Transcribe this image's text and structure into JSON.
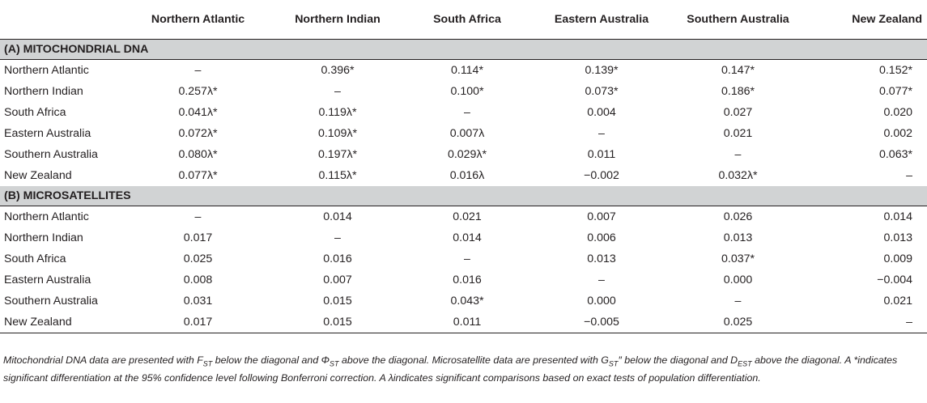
{
  "columns": [
    "",
    "Northern Atlantic",
    "Northern Indian",
    "South Africa",
    "Eastern Australia",
    "Southern Australia",
    "New Zealand"
  ],
  "sections": [
    {
      "title": "(A) MITOCHONDRIAL DNA",
      "rows": [
        {
          "label": "Northern Atlantic",
          "cells": [
            "–",
            "0.396*",
            "0.114*",
            "0.139*",
            "0.147*",
            "0.152*"
          ]
        },
        {
          "label": "Northern Indian",
          "cells": [
            "0.257λ*",
            "–",
            "0.100*",
            "0.073*",
            "0.186*",
            "0.077*"
          ]
        },
        {
          "label": "South Africa",
          "cells": [
            "0.041λ*",
            "0.119λ*",
            "–",
            "0.004",
            "0.027",
            "0.020"
          ]
        },
        {
          "label": "Eastern Australia",
          "cells": [
            "0.072λ*",
            "0.109λ*",
            "0.007λ",
            "–",
            "0.021",
            "0.002"
          ]
        },
        {
          "label": "Southern Australia",
          "cells": [
            "0.080λ*",
            "0.197λ*",
            "0.029λ*",
            "0.011",
            "–",
            "0.063*"
          ]
        },
        {
          "label": "New Zealand",
          "cells": [
            "0.077λ*",
            "0.115λ*",
            "0.016λ",
            "−0.002",
            "0.032λ*",
            "–"
          ]
        }
      ]
    },
    {
      "title": "(B) MICROSATELLITES",
      "rows": [
        {
          "label": "Northern Atlantic",
          "cells": [
            "–",
            "0.014",
            "0.021",
            "0.007",
            "0.026",
            "0.014"
          ]
        },
        {
          "label": "Northern Indian",
          "cells": [
            "0.017",
            "–",
            "0.014",
            "0.006",
            "0.013",
            "0.013"
          ]
        },
        {
          "label": "South Africa",
          "cells": [
            "0.025",
            "0.016",
            "–",
            "0.013",
            "0.037*",
            "0.009"
          ]
        },
        {
          "label": "Eastern Australia",
          "cells": [
            "0.008",
            "0.007",
            "0.016",
            "–",
            "0.000",
            "−0.004"
          ]
        },
        {
          "label": "Southern Australia",
          "cells": [
            "0.031",
            "0.015",
            "0.043*",
            "0.000",
            "–",
            "0.021"
          ]
        },
        {
          "label": "New Zealand",
          "cells": [
            "0.017",
            "0.015",
            "0.011",
            "−0.005",
            "0.025",
            "–"
          ]
        }
      ]
    }
  ],
  "footnote": {
    "s1": "Mitochondrial DNA data are presented with F",
    "s1_sub": "ST",
    "s2": " below the diagonal and Φ",
    "s2_sub": "ST",
    "s3": " above the diagonal. Microsatellite data are presented with G",
    "s3_sub": "ST",
    "s4": "″ below the diagonal and D",
    "s4_sub": "EST",
    "s5": " above the diagonal. A *indicates significant differentiation at the 95% confidence level following Bonferroni correction. A λindicates significant comparisons based on exact tests of population differentiation."
  }
}
